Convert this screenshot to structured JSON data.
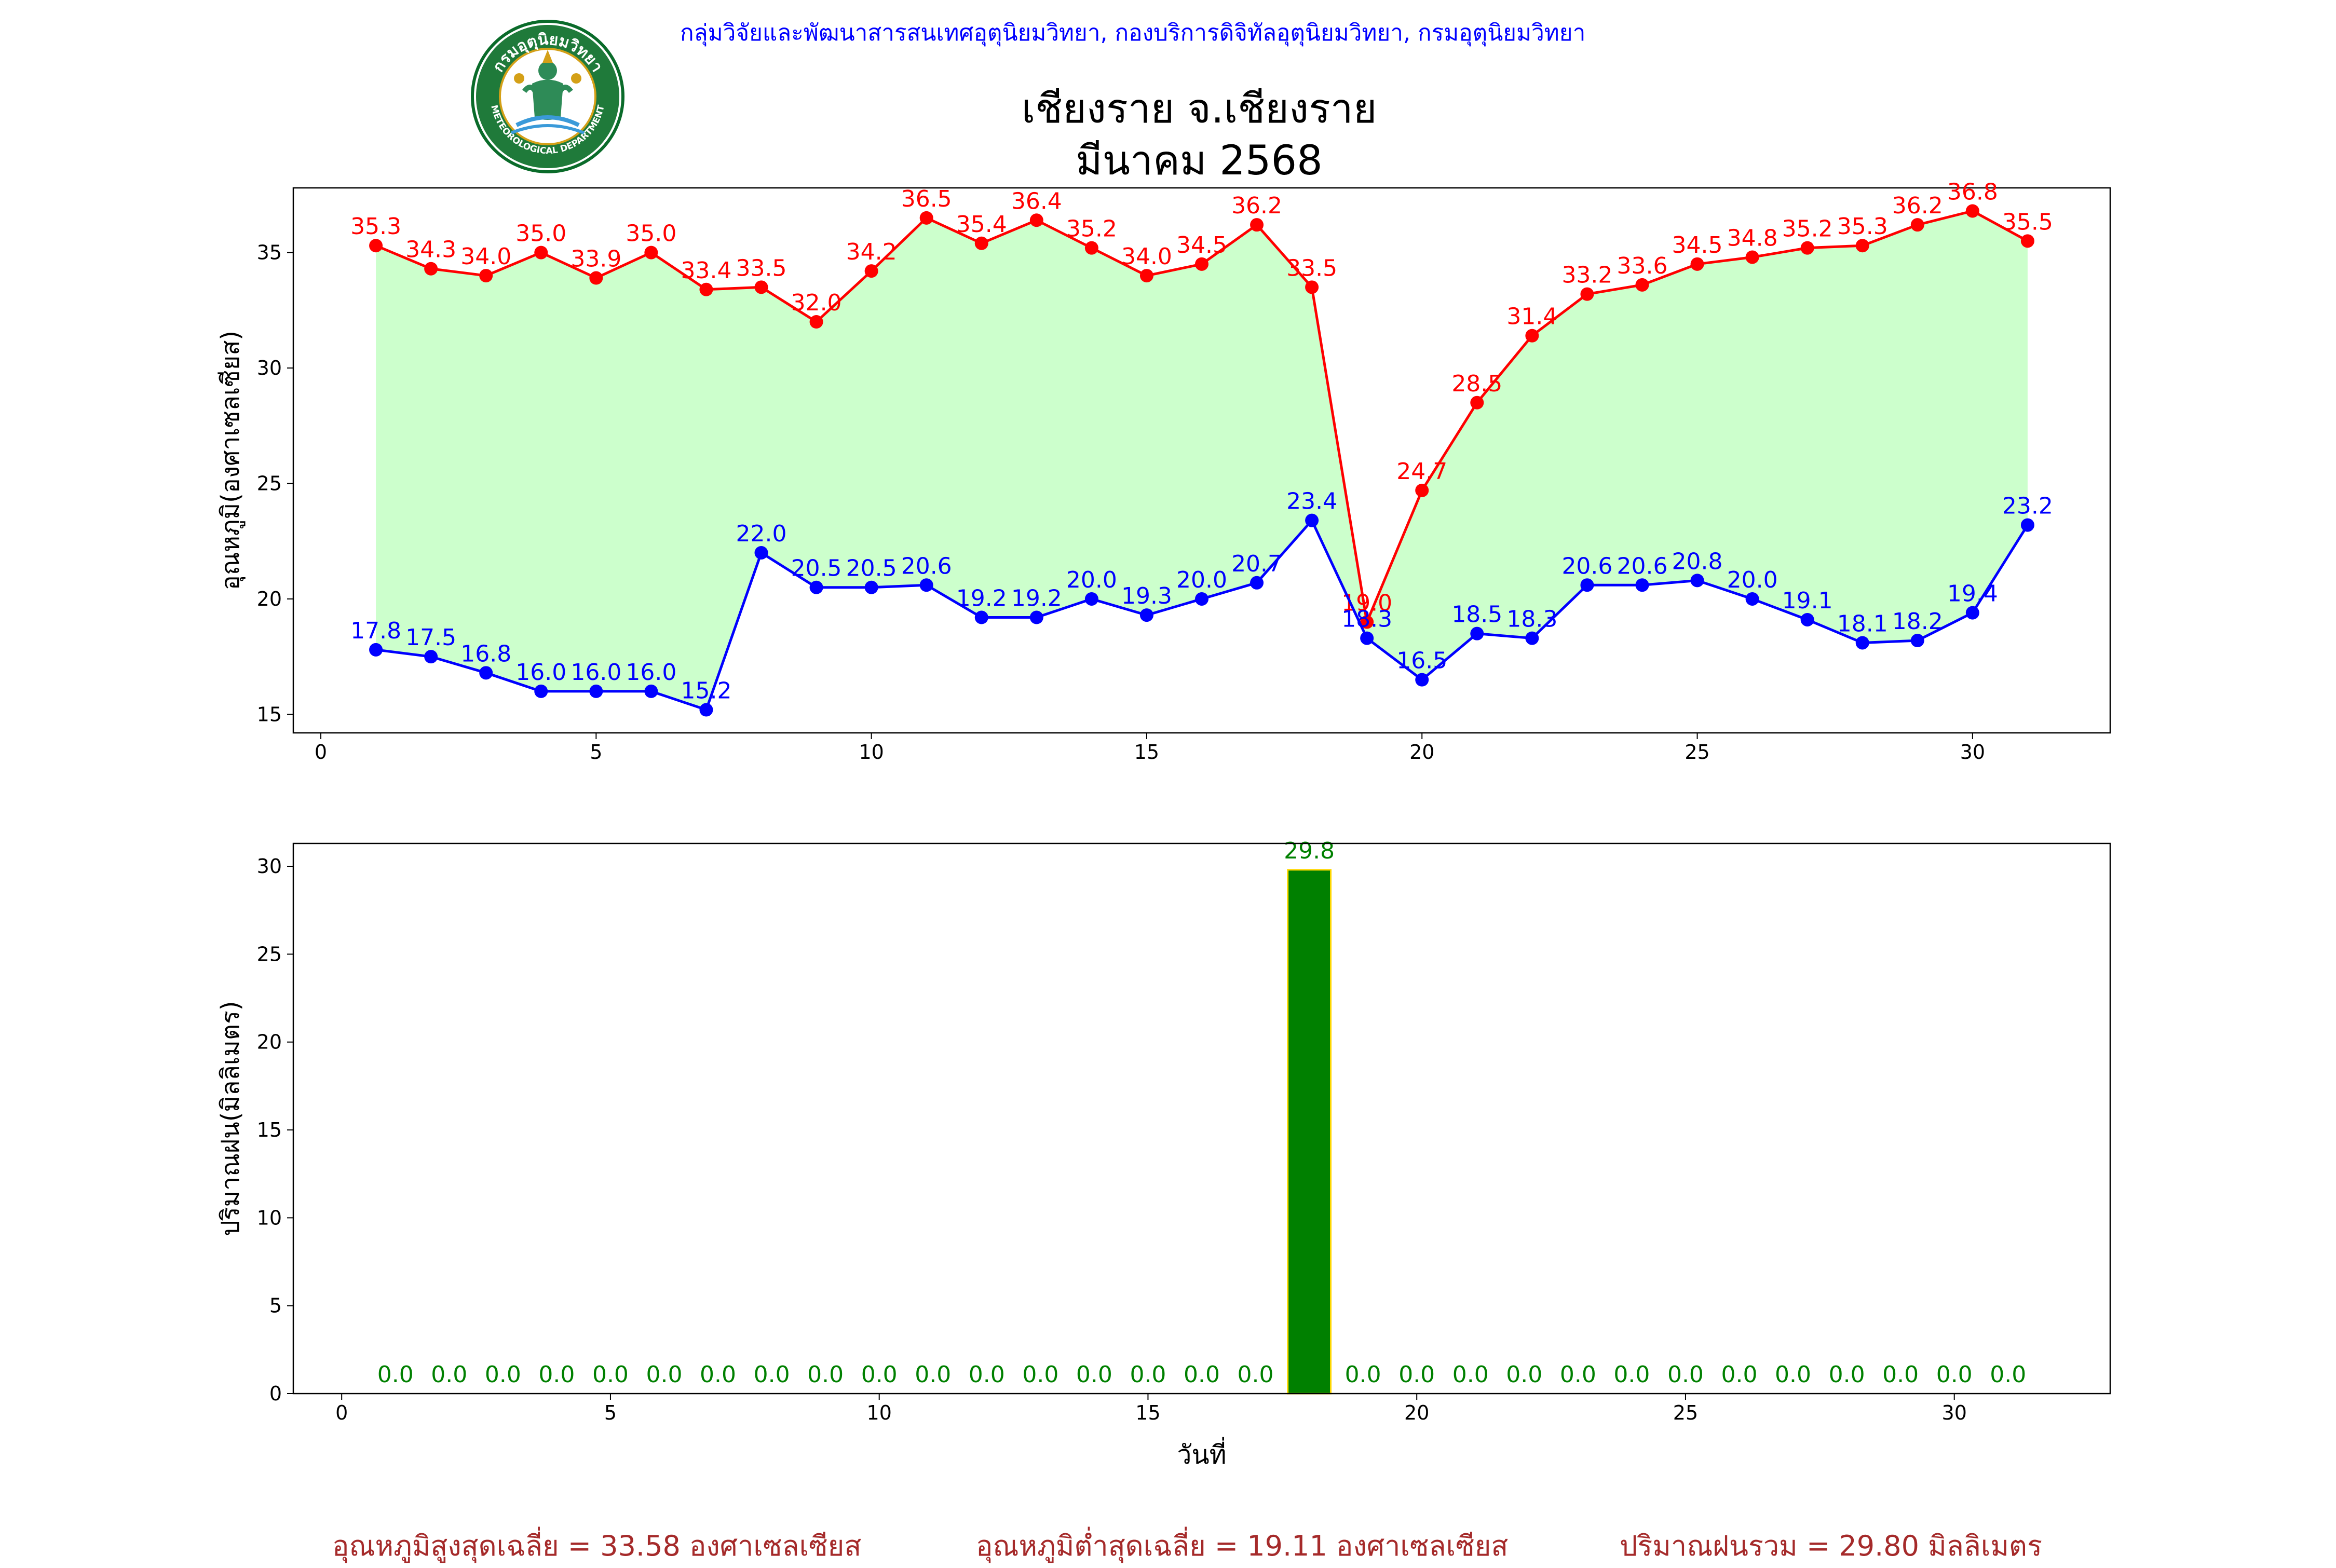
{
  "header": {
    "department": "กลุ่มวิจัยและพัฒนาสารสนเทศอุตุนิยมวิทยา, กองบริการดิจิทัลอุตุนิยมวิทยา, กรมอุตุนิยมวิทยา",
    "title_line1": "เชียงราย จ.เชียงราย",
    "title_line2": "มีนาคม 2568",
    "logo": {
      "icon": "thai-meteorological-department-seal",
      "top_text": "กรมอุตุนิยมวิทยา",
      "bottom_text": "METEOROLOGICAL DEPARTMENT"
    }
  },
  "colors": {
    "max_line": "#ff0000",
    "min_line": "#0000ff",
    "fill": "#ccffcc",
    "bar": "#008000",
    "bar_edge": "#ffd700",
    "bar_label": "#008000",
    "summary": "#a52a2a",
    "header": "#0000ff"
  },
  "chart_data": [
    {
      "type": "line",
      "x": [
        1,
        2,
        3,
        4,
        5,
        6,
        7,
        8,
        9,
        10,
        11,
        12,
        13,
        14,
        15,
        16,
        17,
        18,
        19,
        20,
        21,
        22,
        23,
        24,
        25,
        26,
        27,
        28,
        29,
        30,
        31
      ],
      "series": [
        {
          "values": [
            35.3,
            34.3,
            34.0,
            35.0,
            33.9,
            35.0,
            33.4,
            33.5,
            32.0,
            34.2,
            36.5,
            35.4,
            36.4,
            35.2,
            34.0,
            34.5,
            36.2,
            33.5,
            19.0,
            24.7,
            28.5,
            31.4,
            33.2,
            33.6,
            34.5,
            34.8,
            35.2,
            35.3,
            36.2,
            36.8,
            35.5
          ]
        },
        {
          "values": [
            17.8,
            17.5,
            16.8,
            16.0,
            16.0,
            16.0,
            15.2,
            22.0,
            20.5,
            20.5,
            20.6,
            19.2,
            19.2,
            20.0,
            19.3,
            20.0,
            20.7,
            23.4,
            18.3,
            16.5,
            18.5,
            18.3,
            20.6,
            20.6,
            20.8,
            20.0,
            19.1,
            18.1,
            18.2,
            19.4,
            23.2
          ]
        }
      ],
      "ylabel": "อุณหภูมิ(องศาเซลเซียส)",
      "xlabel": "",
      "xlim": [
        -0.5,
        32.5
      ],
      "ylim": [
        14.2,
        37.8
      ],
      "xticks": [
        0,
        5,
        10,
        15,
        20,
        25,
        30
      ],
      "yticks": [
        15,
        20,
        25,
        30,
        35
      ],
      "fill_between": true,
      "grid": false
    },
    {
      "type": "bar",
      "x": [
        1,
        2,
        3,
        4,
        5,
        6,
        7,
        8,
        9,
        10,
        11,
        12,
        13,
        14,
        15,
        16,
        17,
        18,
        19,
        20,
        21,
        22,
        23,
        24,
        25,
        26,
        27,
        28,
        29,
        30,
        31
      ],
      "values": [
        0.0,
        0.0,
        0.0,
        0.0,
        0.0,
        0.0,
        0.0,
        0.0,
        0.0,
        0.0,
        0.0,
        0.0,
        0.0,
        0.0,
        0.0,
        0.0,
        0.0,
        29.8,
        0.0,
        0.0,
        0.0,
        0.0,
        0.0,
        0.0,
        0.0,
        0.0,
        0.0,
        0.0,
        0.0,
        0.0,
        0.0
      ],
      "ylabel": "ปริมาณฝน(มิลลิเมตร)",
      "xlabel": "วันที่",
      "xlim": [
        -0.9,
        32.9
      ],
      "ylim": [
        0,
        31.3
      ],
      "xticks": [
        0,
        5,
        10,
        15,
        20,
        25,
        30
      ],
      "yticks": [
        0,
        5,
        10,
        15,
        20,
        25,
        30
      ],
      "grid": false
    }
  ],
  "summary": {
    "avg_max": "อุณหภูมิสูงสุดเฉลี่ย = 33.58 องศาเซลเซียส",
    "avg_min": "อุณหภูมิต่ำสุดเฉลี่ย = 19.11 องศาเซลเซียส",
    "total_rain": "ปริมาณฝนรวม = 29.80 มิลลิเมตร"
  }
}
